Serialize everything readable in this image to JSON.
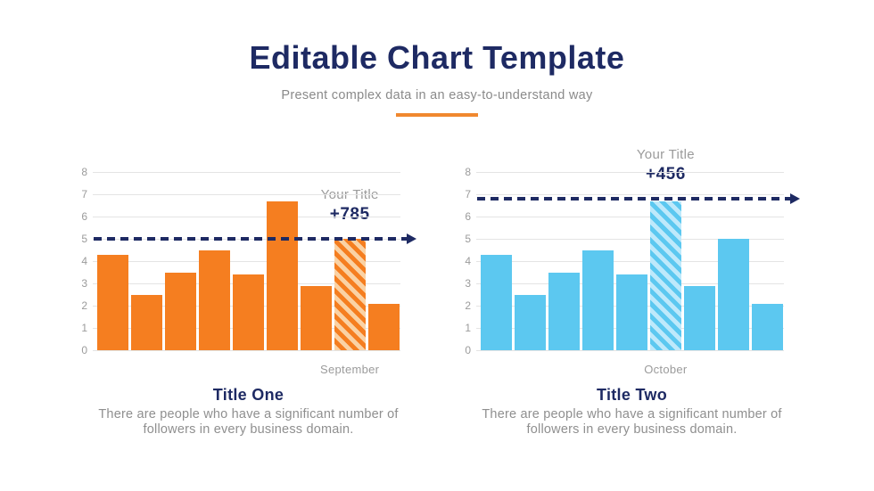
{
  "page": {
    "title": "Editable Chart Template",
    "subtitle": "Present complex data in an easy-to-understand way"
  },
  "colors": {
    "navy": "#1E2A63",
    "underline_orange": "#F0882F",
    "gridline": "#E4E4E4",
    "tick_text": "#9B9B9B",
    "body_text": "#8F8F8F"
  },
  "chart_data": [
    {
      "type": "bar",
      "title": "Title One",
      "description": "There are people who have a significant number of followers in every business domain.",
      "category_label": "September",
      "annotation": {
        "label": "Your Title",
        "value": "+785"
      },
      "values": [
        4.3,
        2.5,
        3.5,
        4.5,
        3.4,
        6.7,
        2.9,
        5.0,
        2.1
      ],
      "hatched_index": 7,
      "reference_line": 5.0,
      "ylim": [
        0,
        8
      ],
      "yticks": [
        0,
        1,
        2,
        3,
        4,
        5,
        6,
        7,
        8
      ],
      "bar_color": "#F57E20",
      "bar_color_light": "#FAD2A4",
      "grid": true,
      "legend": "none"
    },
    {
      "type": "bar",
      "title": "Title Two",
      "description": "There are people who have a significant number of followers in every business domain.",
      "category_label": "October",
      "annotation": {
        "label": "Your Title",
        "value": "+456"
      },
      "values": [
        4.3,
        2.5,
        3.5,
        4.5,
        3.4,
        6.7,
        2.9,
        5.0,
        2.1
      ],
      "hatched_index": 5,
      "reference_line": 6.8,
      "ylim": [
        0,
        8
      ],
      "yticks": [
        0,
        1,
        2,
        3,
        4,
        5,
        6,
        7,
        8
      ],
      "bar_color": "#5CC8F0",
      "bar_color_light": "#BEE9FB",
      "grid": true,
      "legend": "none"
    }
  ]
}
